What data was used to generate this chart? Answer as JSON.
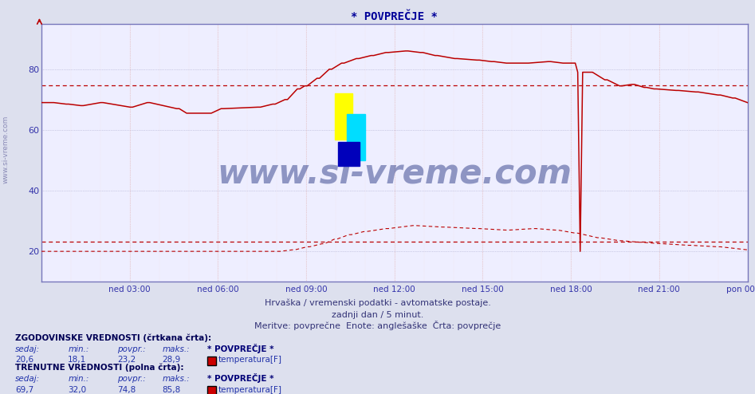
{
  "title": "* POVPREČJE *",
  "bg_color": "#dde0ee",
  "plot_bg_color": "#eeeeff",
  "title_color": "#000099",
  "axis_color": "#5555aa",
  "tick_color": "#3333aa",
  "grid_h_color": "#aaaacc",
  "grid_v_color": "#ddaaaa",
  "grid_v_minor_color": "#eedddd",
  "subtitle_color": "#333377",
  "subtitle1": "Hrvaška / vremenski podatki - avtomatske postaje.",
  "subtitle2": "zadnji dan / 5 minut.",
  "subtitle3": "Meritve: povprečne  Enote: anglešaške  Črta: povprečje",
  "x_tick_labels": [
    "ned 03:00",
    "ned 06:00",
    "ned 09:00",
    "ned 12:00",
    "ned 15:00",
    "ned 18:00",
    "ned 21:00",
    "pon 00:00"
  ],
  "x_tick_fracs": [
    0.125,
    0.25,
    0.375,
    0.5,
    0.625,
    0.75,
    0.875,
    1.0
  ],
  "ylim_min": 10,
  "ylim_max": 95,
  "yticks": [
    20,
    40,
    60,
    80
  ],
  "line_color": "#bb0000",
  "dashed_color": "#bb0000",
  "ref_dashed_hist": 23.2,
  "ref_dashed_curr": 74.8,
  "watermark_text": "www.si-vreme.com",
  "watermark_color": "#1a2a7a",
  "watermark_alpha": 0.45,
  "side_text": "www.si-vreme.com",
  "side_color": "#7777aa",
  "logo_yellow": "#ffff00",
  "logo_cyan": "#00ddff",
  "logo_blue": "#0000bb",
  "bottom_bg": "#dde0ee",
  "bot_label_color": "#000077",
  "bot_val_color": "#2233aa",
  "bot_head_color": "#000055"
}
